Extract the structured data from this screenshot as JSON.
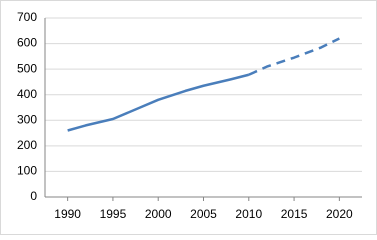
{
  "chart_data": {
    "type": "line",
    "x": [
      1990,
      1992,
      1995,
      1998,
      2000,
      2003,
      2005,
      2008,
      2010,
      2012,
      2015,
      2018,
      2020
    ],
    "series": [
      {
        "color": "#4a7ebb",
        "dash": false,
        "values": [
          260,
          280,
          305,
          350,
          380,
          415,
          435,
          460,
          478,
          null,
          null,
          null,
          null
        ]
      },
      {
        "color": "#4a7ebb",
        "dash": true,
        "values": [
          null,
          null,
          null,
          null,
          null,
          null,
          null,
          null,
          478,
          510,
          545,
          585,
          620
        ]
      }
    ],
    "xlim": [
      1987.5,
      2022.5
    ],
    "xticks": [
      1990,
      1995,
      2000,
      2005,
      2010,
      2015,
      2020
    ],
    "ylim": [
      0,
      700
    ],
    "yticks": [
      0,
      100,
      200,
      300,
      400,
      500,
      600,
      700
    ],
    "grid": true
  }
}
